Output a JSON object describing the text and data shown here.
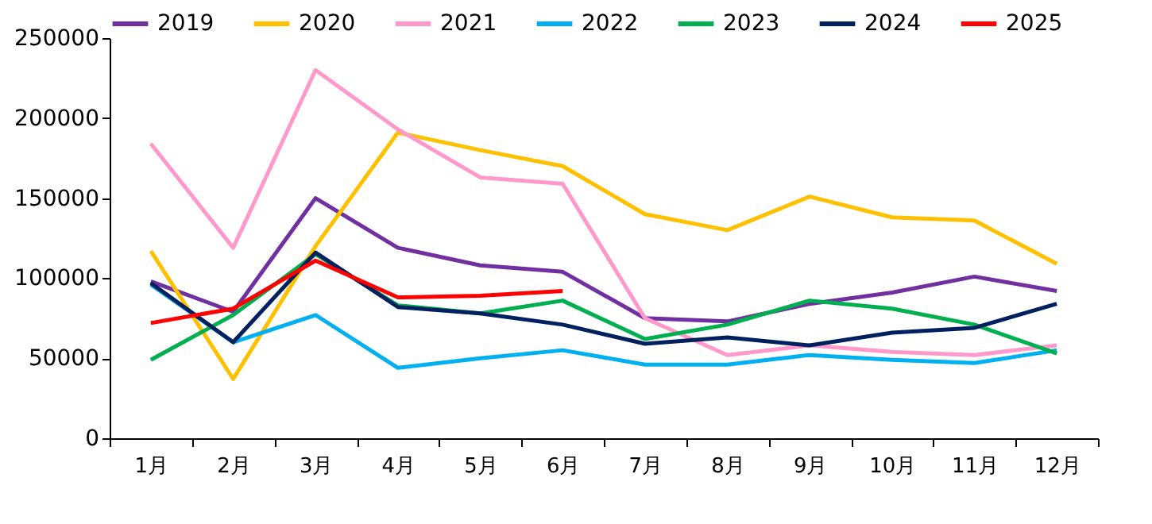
{
  "chart_data": {
    "type": "line",
    "categories": [
      "1月",
      "2月",
      "3月",
      "4月",
      "5月",
      "6月",
      "7月",
      "8月",
      "9月",
      "10月",
      "11月",
      "12月"
    ],
    "ylim": [
      0,
      250000
    ],
    "yticks": [
      0,
      50000,
      100000,
      150000,
      200000,
      250000
    ],
    "grid": false,
    "legend": "top",
    "marker": "none",
    "line_style": "solid",
    "series": [
      {
        "name": "2019",
        "color": "#7030a0",
        "values": [
          98000,
          79000,
          150000,
          119000,
          108000,
          104000,
          75000,
          73000,
          84000,
          91000,
          101000,
          92000
        ]
      },
      {
        "name": "2020",
        "color": "#ffc000",
        "values": [
          117000,
          37000,
          120000,
          191000,
          180000,
          170000,
          140000,
          130000,
          151000,
          138000,
          136000,
          109000
        ]
      },
      {
        "name": "2021",
        "color": "#ff99cc",
        "values": [
          184000,
          119000,
          230000,
          193000,
          163000,
          159000,
          75000,
          52000,
          58000,
          54000,
          52000,
          58000
        ]
      },
      {
        "name": "2022",
        "color": "#00b0f0",
        "values": [
          96000,
          60000,
          77000,
          44000,
          50000,
          55000,
          46000,
          46000,
          52000,
          49000,
          47000,
          55000
        ]
      },
      {
        "name": "2023",
        "color": "#00b050",
        "values": [
          49000,
          77000,
          115000,
          83000,
          78000,
          86000,
          62000,
          71000,
          86000,
          81000,
          71000,
          53000
        ]
      },
      {
        "name": "2024",
        "color": "#002060",
        "values": [
          97000,
          60000,
          116000,
          82000,
          78000,
          71000,
          59000,
          63000,
          58000,
          66000,
          69000,
          84000
        ]
      },
      {
        "name": "2025",
        "color": "#ff0000",
        "values": [
          72000,
          81000,
          111000,
          88000,
          89000,
          92000,
          null,
          null,
          null,
          null,
          null,
          null
        ]
      }
    ]
  }
}
